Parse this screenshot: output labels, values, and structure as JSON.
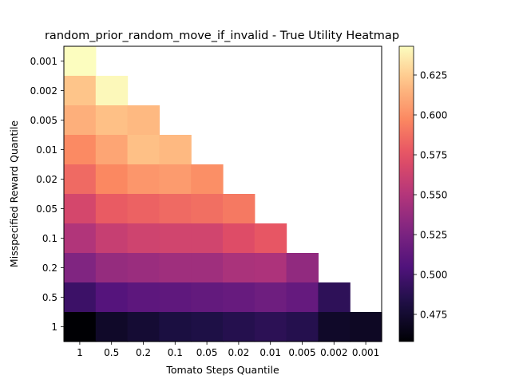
{
  "chart_data": {
    "type": "heatmap",
    "title": "random_prior_random_move_if_invalid - True Utility Heatmap",
    "xlabel": "Tomato Steps Quantile",
    "ylabel": "Misspecified Reward Quantile",
    "x_categories": [
      "1",
      "0.5",
      "0.2",
      "0.1",
      "0.05",
      "0.02",
      "0.01",
      "0.005",
      "0.002",
      "0.001"
    ],
    "y_categories": [
      "0.001",
      "0.002",
      "0.005",
      "0.01",
      "0.02",
      "0.05",
      "0.1",
      "0.2",
      "0.5",
      "1"
    ],
    "values": [
      [
        0.643,
        null,
        null,
        null,
        null,
        null,
        null,
        null,
        null,
        null
      ],
      [
        0.622,
        0.641,
        null,
        null,
        null,
        null,
        null,
        null,
        null,
        null
      ],
      [
        0.613,
        0.62,
        0.617,
        null,
        null,
        null,
        null,
        null,
        null,
        null
      ],
      [
        0.598,
        0.609,
        0.62,
        0.617,
        null,
        null,
        null,
        null,
        null,
        null
      ],
      [
        0.585,
        0.597,
        0.603,
        0.605,
        0.6,
        null,
        null,
        null,
        null,
        null
      ],
      [
        0.566,
        0.579,
        0.582,
        0.585,
        0.587,
        0.591,
        null,
        null,
        null,
        null
      ],
      [
        0.549,
        0.559,
        0.563,
        0.564,
        0.564,
        0.571,
        0.577,
        null,
        null,
        null
      ],
      [
        0.528,
        0.537,
        0.539,
        0.541,
        0.541,
        0.546,
        0.547,
        0.535,
        null,
        null
      ],
      [
        0.496,
        0.507,
        0.511,
        0.512,
        0.514,
        0.516,
        0.519,
        0.515,
        0.49,
        null
      ],
      [
        0.458,
        0.472,
        0.476,
        0.481,
        0.483,
        0.486,
        0.489,
        0.486,
        0.472,
        0.47
      ]
    ],
    "colormap": "magma",
    "vmin": 0.458,
    "vmax": 0.643,
    "colorbar_ticks": [
      0.475,
      0.5,
      0.525,
      0.55,
      0.575,
      0.6,
      0.625
    ],
    "colorbar_tick_labels": [
      "0.475",
      "0.500",
      "0.525",
      "0.550",
      "0.575",
      "0.600",
      "0.625"
    ]
  }
}
